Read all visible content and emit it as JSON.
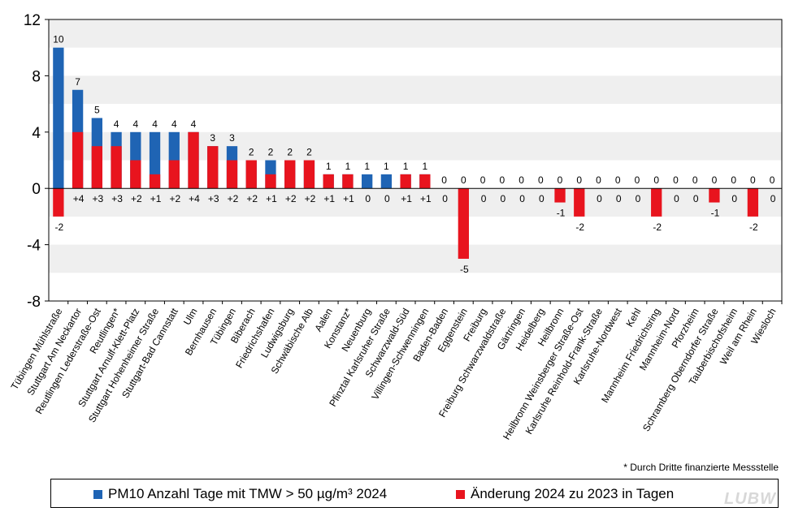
{
  "chart_data": {
    "type": "bar",
    "categories": [
      "Tübingen Mühlstraße",
      "Stuttgart Am Neckartor",
      "Reutlingen Lederstraße-Ost",
      "Reutlingen*",
      "Stuttgart Arnulf-Klett-Platz",
      "Stuttgart Hohenheimer Straße",
      "Stuttgart-Bad Cannstatt",
      "Ulm",
      "Bernhausen",
      "Tübingen",
      "Biberach",
      "Friedrichshafen",
      "Ludwigsburg",
      "Schwäbische Alb",
      "Aalen",
      "Konstanz*",
      "Neuenburg",
      "Pfinztal Karlsruher Straße",
      "Schwarzwald-Süd",
      "Villingen-Schwenningen",
      "Baden-Baden",
      "Eggenstein",
      "Freiburg",
      "Freiburg Schwarzwaldstraße",
      "Gärtringen",
      "Heidelberg",
      "Heilbronn",
      "Heilbronn Weinsberger Straße-Ost",
      "Karlsruhe Reinhold-Frank-Straße",
      "Karlsruhe-Nordwest",
      "Kehl",
      "Mannheim Friedrichsring",
      "Mannheim-Nord",
      "Pforzheim",
      "Schramberg Oberndorfer Straße",
      "Tauberbischofsheim",
      "Weil am Rhein",
      "Wiesloch"
    ],
    "series": [
      {
        "name": "PM10 Anzahl Tage mit TMW > 50 µg/m³ 2024",
        "color": "#1f64b4",
        "values": [
          10,
          7,
          5,
          4,
          4,
          4,
          4,
          4,
          3,
          3,
          2,
          2,
          2,
          2,
          1,
          1,
          1,
          1,
          1,
          1,
          0,
          0,
          0,
          0,
          0,
          0,
          0,
          0,
          0,
          0,
          0,
          0,
          0,
          0,
          0,
          0,
          0,
          0
        ]
      },
      {
        "name": "Änderung 2024 zu 2023 in Tagen",
        "color": "#e8141e",
        "values": [
          -2,
          4,
          3,
          3,
          2,
          1,
          2,
          4,
          3,
          2,
          2,
          1,
          2,
          2,
          1,
          1,
          0,
          0,
          1,
          1,
          0,
          -5,
          0,
          0,
          0,
          0,
          -1,
          -2,
          0,
          0,
          0,
          -2,
          0,
          0,
          -1,
          0,
          -2,
          0
        ]
      }
    ],
    "value_labels": [
      "10",
      "7",
      "5",
      "4",
      "4",
      "4",
      "4",
      "4",
      "3",
      "3",
      "2",
      "2",
      "2",
      "2",
      "1",
      "1",
      "1",
      "1",
      "1",
      "1",
      "0",
      "0",
      "0",
      "0",
      "0",
      "0",
      "0",
      "0",
      "0",
      "0",
      "0",
      "0",
      "0",
      "0",
      "0",
      "0",
      "0",
      "0"
    ],
    "change_labels": [
      "-2",
      "+4",
      "+3",
      "+3",
      "+2",
      "+1",
      "+2",
      "+4",
      "+3",
      "+2",
      "+2",
      "+1",
      "+2",
      "+2",
      "+1",
      "+1",
      "0",
      "0",
      "+1",
      "+1",
      "0",
      "-5",
      "0",
      "0",
      "0",
      "0",
      "-1",
      "-2",
      "0",
      "0",
      "0",
      "-2",
      "0",
      "0",
      "-1",
      "0",
      "-2",
      "0"
    ],
    "ylim": [
      -8,
      12
    ],
    "yticks": [
      "-8",
      "-4",
      "0",
      "4",
      "8",
      "12"
    ],
    "ytick_values": [
      -8,
      -4,
      0,
      4,
      8,
      12
    ],
    "grid": "alternating bands",
    "legend_position": "bottom",
    "title": "",
    "xlabel": "",
    "ylabel": ""
  },
  "legend": {
    "pm10_label": "PM10 Anzahl Tage mit TMW > 50 µg/m³ 2024",
    "change_label": "Änderung 2024 zu 2023 in Tagen"
  },
  "footnote": "* Durch Dritte finanzierte Messstelle",
  "logo_text": "LUBW",
  "colors": {
    "pm10": "#1f64b4",
    "change": "#e8141e",
    "band": "#efefef"
  }
}
